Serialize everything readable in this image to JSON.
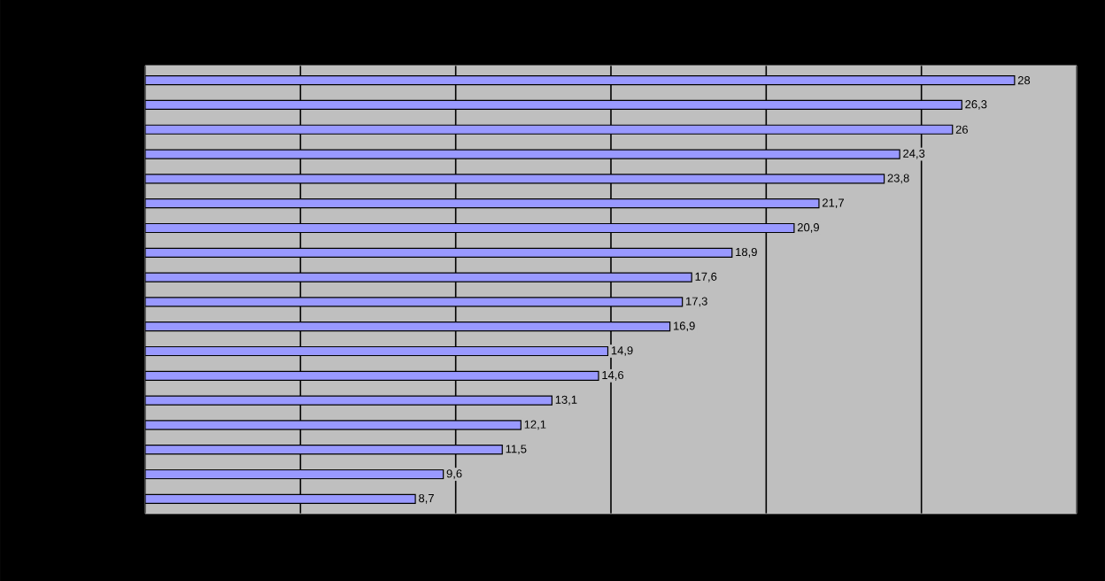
{
  "chart_data": {
    "type": "bar",
    "orientation": "horizontal",
    "categories": [
      null,
      null,
      null,
      null,
      null,
      null,
      null,
      null,
      null,
      null,
      null,
      null,
      null,
      null,
      null,
      null,
      null,
      null
    ],
    "values": [
      28,
      26.3,
      26,
      24.3,
      23.8,
      21.7,
      20.9,
      18.9,
      17.6,
      17.3,
      16.9,
      14.9,
      14.6,
      13.1,
      12.1,
      11.5,
      9.6,
      8.7
    ],
    "value_labels": [
      "28",
      "26,3",
      "26",
      "24,3",
      "23,8",
      "21,7",
      "20,9",
      "18,9",
      "17,6",
      "17,3",
      "16,9",
      "14,9",
      "14,6",
      "13,1",
      "12,1",
      "11,5",
      "9,6",
      "8,7"
    ],
    "color": "#9999ff",
    "xlim": [
      0,
      30
    ],
    "xticks": [
      {
        "value": 0,
        "label": null
      },
      {
        "value": 5,
        "label": null
      },
      {
        "value": 10,
        "label": null
      },
      {
        "value": 15,
        "label": null
      },
      {
        "value": 20,
        "label": null
      },
      {
        "value": 25,
        "label": null
      },
      {
        "value": 30,
        "label": null
      }
    ],
    "grid": "x"
  }
}
